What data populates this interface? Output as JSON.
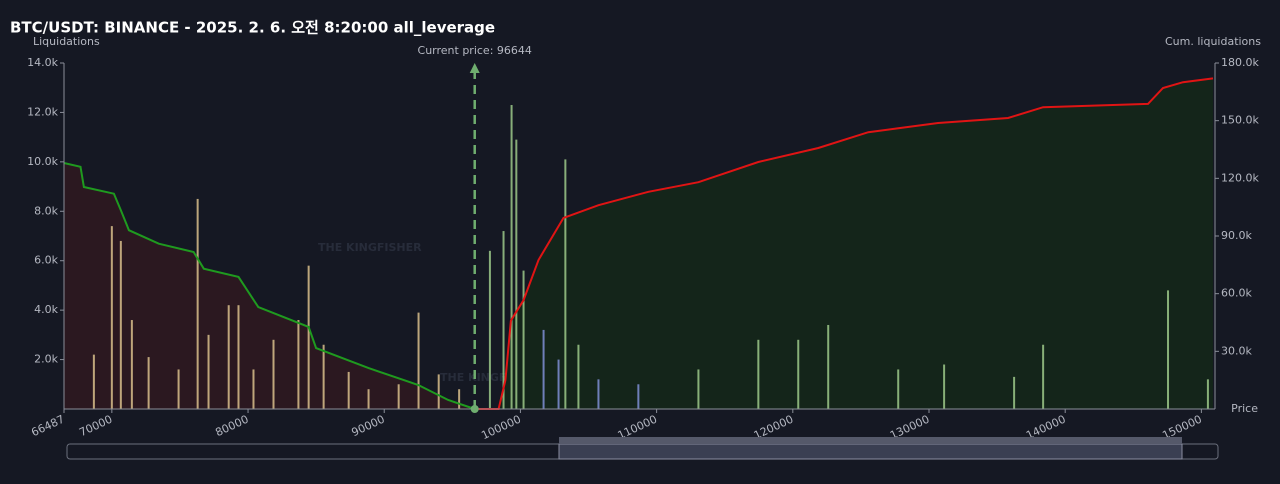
{
  "chart_data": {
    "type": "bar",
    "title": "BTC/USDT: BINANCE - 2025. 2. 6. 오전 8:20:00 all_leverage",
    "y_label": "Liquidations",
    "y2_label": "Cum. liquidations",
    "x_label": "Price",
    "watermark": "THE KINGFISHER",
    "watermark_suffix": ".io",
    "current_price": 96644,
    "current_price_label": "Current price: 96644",
    "current_price_color": "#6fae6f",
    "xlim": [
      66487,
      151000
    ],
    "xticks": [
      66487,
      70000,
      80000,
      90000,
      100000,
      110000,
      120000,
      130000,
      140000,
      150000
    ],
    "ylim": [
      0,
      14000
    ],
    "yticks": [
      {
        "value": 2000,
        "label": "2.0k"
      },
      {
        "value": 4000,
        "label": "4.0k"
      },
      {
        "value": 6000,
        "label": "6.0k"
      },
      {
        "value": 8000,
        "label": "8.0k"
      },
      {
        "value": 10000,
        "label": "10.0k"
      },
      {
        "value": 12000,
        "label": "12.0k"
      },
      {
        "value": 14000,
        "label": "14.0k"
      }
    ],
    "y2lim": [
      0,
      180000
    ],
    "y2ticks": [
      {
        "value": 30000,
        "label": "30.0k"
      },
      {
        "value": 60000,
        "label": "60.0k"
      },
      {
        "value": 90000,
        "label": "90.0k"
      },
      {
        "value": 120000,
        "label": "120.0k"
      },
      {
        "value": 150000,
        "label": "150.0k"
      },
      {
        "value": 180000,
        "label": "180.0k"
      }
    ],
    "series": [
      {
        "color": "#d9c08c",
        "x": [
          68680,
          70000,
          70660,
          71470,
          72700,
          74900,
          76300,
          77100,
          78580,
          79300,
          80400,
          81870,
          83700,
          84450,
          85550,
          87390,
          88850,
          91060,
          92520,
          94000,
          95500
        ],
        "values": [
          2200,
          7400,
          6800,
          3600,
          2100,
          1600,
          8500,
          3000,
          4200,
          4200,
          1600,
          2800,
          3600,
          5800,
          2600,
          1500,
          800,
          1000,
          3900,
          1400,
          800
        ]
      },
      {
        "color": "#9cc98a",
        "x": [
          97760,
          98760,
          99350,
          99700,
          100230,
          103300,
          104260,
          113070,
          117470,
          120400,
          122600,
          127740,
          131110,
          136250,
          138380,
          147550,
          150480
        ],
        "values": [
          6400,
          7200,
          12300,
          10900,
          5600,
          10100,
          2600,
          1600,
          2800,
          2800,
          3400,
          1600,
          1800,
          1300,
          2600,
          4800,
          1200
        ]
      },
      {
        "color": "#7f8fd6",
        "x": [
          101700,
          102800,
          105730,
          108660
        ],
        "values": [
          3200,
          2000,
          1200,
          1000
        ]
      }
    ],
    "cumulative": [
      {
        "type": "line",
        "axis": "y2",
        "color": "#1f9a1f",
        "fill": "#2b1820",
        "x": [
          66487,
          67700,
          67950,
          70150,
          70660,
          71250,
          73450,
          76000,
          76750,
          79300,
          80750,
          84450,
          85000,
          88850,
          92500,
          94700,
          96644
        ],
        "values": [
          128000,
          126000,
          115500,
          112000,
          103500,
          93000,
          86000,
          81700,
          73000,
          68700,
          53000,
          42700,
          31700,
          21300,
          12500,
          4700,
          0
        ]
      },
      {
        "type": "line",
        "axis": "y2",
        "color": "#e01414",
        "fill": "#14251a",
        "x": [
          96644,
          98400,
          98900,
          99300,
          100230,
          101330,
          103160,
          105730,
          109400,
          113070,
          117470,
          121870,
          125540,
          130670,
          135810,
          138380,
          146080,
          147180,
          148650,
          150850
        ],
        "values": [
          0,
          0,
          15000,
          46000,
          56700,
          77500,
          99400,
          106000,
          113000,
          118000,
          128500,
          135800,
          144000,
          148800,
          151400,
          157000,
          158700,
          167000,
          170000,
          172000
        ]
      }
    ]
  }
}
